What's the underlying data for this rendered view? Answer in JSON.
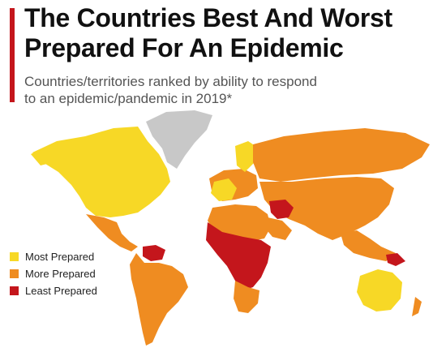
{
  "header": {
    "title_line1": "The Countries Best And Worst",
    "title_line2": "Prepared For An Epidemic",
    "subtitle_line1": "Countries/territories ranked by ability to respond",
    "subtitle_line2": "to an epidemic/pandemic in 2019*"
  },
  "legend": [
    {
      "label": "Most Prepared",
      "color": "#f7d826"
    },
    {
      "label": "More Prepared",
      "color": "#ef8c21"
    },
    {
      "label": "Least Prepared",
      "color": "#c4161c"
    }
  ],
  "map_colors": {
    "no_data": "#c8c8c8",
    "accent": "#c4161c"
  }
}
